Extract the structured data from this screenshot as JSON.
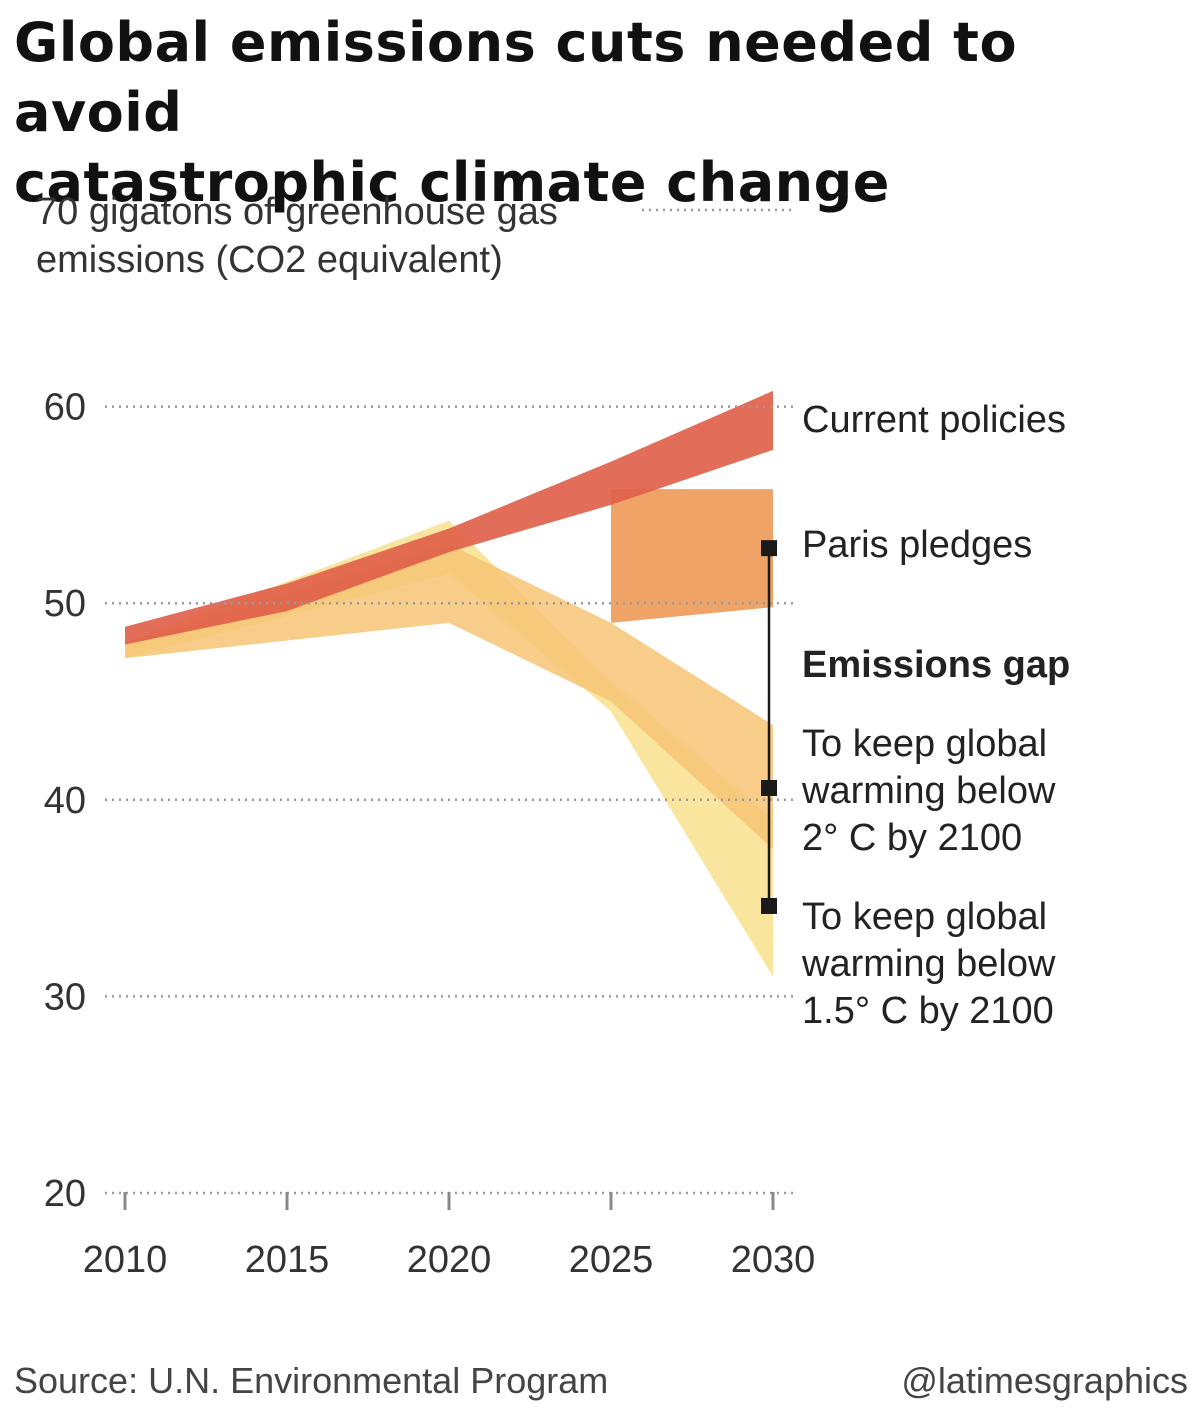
{
  "title_lines": [
    "Global emissions cuts needed to avoid",
    "catastrophic climate change"
  ],
  "footer": {
    "source": "Source: U.N. Environmental Program",
    "credit": "@latimesgraphics"
  },
  "colors": {
    "current": "#e0614a",
    "paris": "#ee9b5a",
    "two_deg": "#f6c474",
    "onefive": "#f8dc7e",
    "onefive_light": "#fbe9a8",
    "grid": "#9a9a9a",
    "gap_line": "#1a1a1a"
  },
  "chart_data": {
    "type": "area",
    "ylabel_lines": [
      "70 gigatons of greenhouse gas",
      "emissions (CO2 equivalent)"
    ],
    "ylim": [
      20,
      70
    ],
    "xlim": [
      2010,
      2030
    ],
    "yticks": [
      {
        "value": 70,
        "label": ""
      },
      {
        "value": 60,
        "label": "60"
      },
      {
        "value": 50,
        "label": "50"
      },
      {
        "value": 40,
        "label": "40"
      },
      {
        "value": 30,
        "label": "30"
      },
      {
        "value": 20,
        "label": "20"
      }
    ],
    "xticks": [
      2010,
      2015,
      2020,
      2025,
      2030
    ],
    "grid": true,
    "series": [
      {
        "name": "To keep global warming below 1.5° C by 2100",
        "label_lines": [
          "To keep global",
          "warming below",
          "1.5° C by 2100"
        ],
        "color_key": "onefive",
        "x": [
          2010,
          2020,
          2025,
          2030
        ],
        "upper": [
          48.0,
          54.2,
          46.0,
          39.0
        ],
        "lower": [
          47.2,
          51.5,
          44.5,
          31.0
        ]
      },
      {
        "name": "To keep global warming below 2° C by 2100",
        "label_lines": [
          "To keep global",
          "warming below",
          "2° C by 2100"
        ],
        "color_key": "two_deg",
        "x": [
          2010,
          2020,
          2025,
          2030
        ],
        "upper": [
          48.0,
          53.0,
          49.0,
          43.8
        ],
        "lower": [
          47.2,
          49.0,
          45.0,
          37.5
        ]
      },
      {
        "name": "Paris pledges",
        "label_lines": [
          "Paris pledges"
        ],
        "color_key": "paris",
        "x": [
          2025,
          2030
        ],
        "upper": [
          55.8,
          55.8
        ],
        "lower": [
          49.0,
          49.8
        ]
      },
      {
        "name": "Current policies",
        "label_lines": [
          "Current policies"
        ],
        "color_key": "current",
        "x": [
          2010,
          2015,
          2020,
          2025,
          2030
        ],
        "upper": [
          48.8,
          51.0,
          53.8,
          57.2,
          60.8
        ],
        "lower": [
          47.9,
          49.6,
          52.6,
          55.0,
          57.8
        ]
      }
    ],
    "emissions_gap": {
      "label": "Emissions gap",
      "x": 2030,
      "points": [
        52.8,
        40.6,
        34.6
      ]
    }
  }
}
